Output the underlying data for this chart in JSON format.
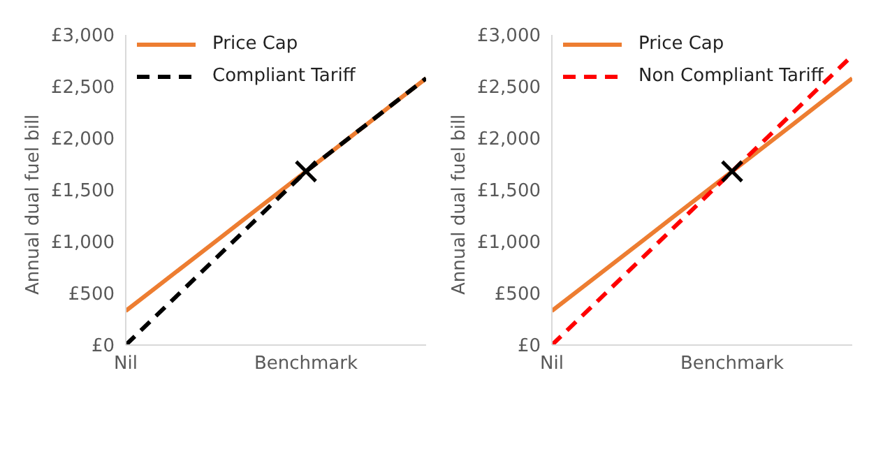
{
  "chart_data": [
    {
      "type": "line",
      "ylabel": "Annual dual fuel bill",
      "categories": [
        "Nil",
        null,
        null,
        null,
        null,
        null,
        "Benchmark",
        null,
        null,
        null,
        null
      ],
      "ylim": [
        0,
        3000
      ],
      "yticks": [
        {
          "value": 0,
          "label": "£0"
        },
        {
          "value": 500,
          "label": "£500"
        },
        {
          "value": 1000,
          "label": "£1,000"
        },
        {
          "value": 1500,
          "label": "£1,500"
        },
        {
          "value": 2000,
          "label": "£2,000"
        },
        {
          "value": 2500,
          "label": "£2,500"
        },
        {
          "value": 3000,
          "label": "£3,000"
        }
      ],
      "grid": false,
      "legend": "top left",
      "series": [
        {
          "name": "Price Cap",
          "color": "#ed7d31",
          "line_style": "solid",
          "marker": "none",
          "values": [
            330,
            555,
            780,
            1005,
            1230,
            1455,
            1680,
            1905,
            2130,
            2355,
            2580
          ]
        },
        {
          "name": "Compliant Tariff",
          "color": "#000000",
          "line_style": "dashed",
          "marker": "none",
          "values": [
            0,
            280,
            560,
            840,
            1120,
            1400,
            1680,
            1905,
            2130,
            2355,
            2580
          ]
        },
        {
          "type": "scatter",
          "color": "#000000",
          "marker": "cross",
          "values": [
            null,
            null,
            null,
            null,
            null,
            null,
            1680,
            null,
            null,
            null,
            null
          ]
        }
      ]
    },
    {
      "type": "line",
      "ylabel": "Annual dual fuel bill",
      "categories": [
        "Nil",
        null,
        null,
        null,
        null,
        null,
        "Benchmark",
        null,
        null,
        null,
        null
      ],
      "ylim": [
        0,
        3000
      ],
      "yticks": [
        {
          "value": 0,
          "label": "£0"
        },
        {
          "value": 500,
          "label": "£500"
        },
        {
          "value": 1000,
          "label": "£1,000"
        },
        {
          "value": 1500,
          "label": "£1,500"
        },
        {
          "value": 2000,
          "label": "£2,000"
        },
        {
          "value": 2500,
          "label": "£2,500"
        },
        {
          "value": 3000,
          "label": "£3,000"
        }
      ],
      "grid": false,
      "legend": "top left",
      "series": [
        {
          "name": "Price Cap",
          "color": "#ed7d31",
          "line_style": "solid",
          "marker": "none",
          "values": [
            330,
            555,
            780,
            1005,
            1230,
            1455,
            1680,
            1905,
            2130,
            2355,
            2580
          ]
        },
        {
          "name": "Non Compliant Tariff",
          "color": "#ff0000",
          "line_style": "dashed",
          "marker": "none",
          "values": [
            0,
            280,
            560,
            840,
            1120,
            1400,
            1680,
            1960,
            2240,
            2520,
            2800
          ]
        },
        {
          "type": "scatter",
          "color": "#000000",
          "marker": "cross",
          "values": [
            null,
            null,
            null,
            null,
            null,
            null,
            1680,
            null,
            null,
            null,
            null
          ]
        }
      ]
    }
  ]
}
